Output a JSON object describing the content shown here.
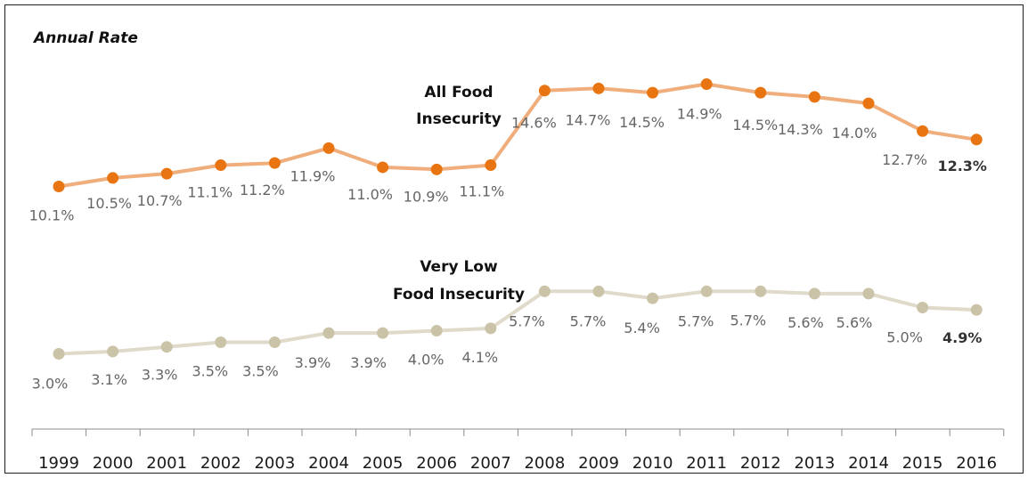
{
  "chart_data": {
    "type": "line",
    "title": "Annual Rate",
    "xlabel": "",
    "ylabel": "",
    "grid": false,
    "legend": "none",
    "categories": [
      "1999",
      "2000",
      "2001",
      "2002",
      "2003",
      "2004",
      "2005",
      "2006",
      "2007",
      "2008",
      "2009",
      "2010",
      "2011",
      "2012",
      "2013",
      "2014",
      "2015",
      "2016"
    ],
    "series": [
      {
        "name": "All Food Insecurity",
        "label_lines": [
          "All Food",
          "Insecurity"
        ],
        "color": "#E87511",
        "line_color": "#F0AE7C",
        "values": [
          10.1,
          10.5,
          10.7,
          11.1,
          11.2,
          11.9,
          11.0,
          10.9,
          11.1,
          14.6,
          14.7,
          14.5,
          14.9,
          14.5,
          14.3,
          14.0,
          12.7,
          12.3
        ],
        "labels": [
          "10.1%",
          "10.5%",
          "10.7%",
          "11.1%",
          "11.2%",
          "11.9%",
          "11.0%",
          "10.9%",
          "11.1%",
          "14.6%",
          "14.7%",
          "14.5%",
          "14.9%",
          "14.5%",
          "14.3%",
          "14.0%",
          "12.7%",
          "12.3%"
        ]
      },
      {
        "name": "Very Low Food Insecurity",
        "label_lines": [
          "Very Low",
          "Food Insecurity"
        ],
        "color": "#CBC3A7",
        "line_color": "#E0DACB",
        "values": [
          3.0,
          3.1,
          3.3,
          3.5,
          3.5,
          3.9,
          3.9,
          4.0,
          4.1,
          5.7,
          5.7,
          5.4,
          5.7,
          5.7,
          5.6,
          5.6,
          5.0,
          4.9
        ],
        "labels": [
          "3.0%",
          "3.1%",
          "3.3%",
          "3.5%",
          "3.5%",
          "3.9%",
          "3.9%",
          "4.0%",
          "4.1%",
          "5.7%",
          "5.7%",
          "5.4%",
          "5.7%",
          "5.7%",
          "5.6%",
          "5.6%",
          "5.0%",
          "4.9%"
        ]
      }
    ]
  }
}
